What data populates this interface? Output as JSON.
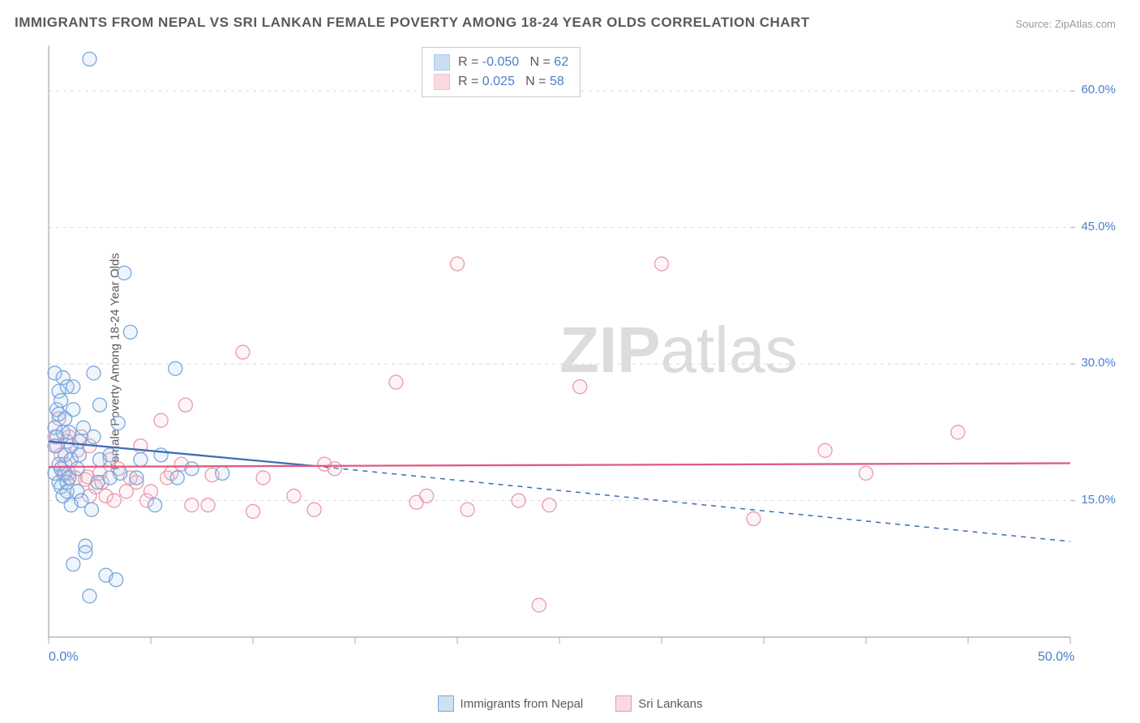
{
  "title": "IMMIGRANTS FROM NEPAL VS SRI LANKAN FEMALE POVERTY AMONG 18-24 YEAR OLDS CORRELATION CHART",
  "source": "Source: ZipAtlas.com",
  "ylabel": "Female Poverty Among 18-24 Year Olds",
  "watermark": {
    "zip": "ZIP",
    "atlas": "atlas"
  },
  "chart": {
    "type": "scatter",
    "background_color": "#ffffff",
    "grid_color": "#d9d9d9",
    "axis_color": "#a8a8a8",
    "tick_color": "#a8a8a8",
    "label_color": "#4a7ecb",
    "xlim": [
      0,
      50
    ],
    "ylim": [
      0,
      65
    ],
    "xticks_minor": [
      5,
      10,
      15,
      20,
      25,
      30,
      35,
      40,
      45
    ],
    "xticks_label": [
      {
        "v": 0,
        "t": "0.0%"
      },
      {
        "v": 50,
        "t": "50.0%"
      }
    ],
    "yticks": [
      {
        "v": 15,
        "t": "15.0%"
      },
      {
        "v": 30,
        "t": "30.0%"
      },
      {
        "v": 45,
        "t": "45.0%"
      },
      {
        "v": 60,
        "t": "60.0%"
      }
    ],
    "marker_radius": 8.5,
    "marker_stroke_width": 1.3,
    "marker_fill_opacity": 0.18,
    "series": [
      {
        "name": "Immigrants from Nepal",
        "color_stroke": "#7aa6dc",
        "color_fill": "#a9c8ec",
        "R": "-0.050",
        "N": "62",
        "trend": {
          "solid_from": [
            0,
            21.5
          ],
          "solid_to": [
            13,
            18.8
          ],
          "dash_to": [
            50,
            10.5
          ],
          "stroke": "#3d6db5",
          "width": 2.3
        },
        "points": [
          [
            0.3,
            21
          ],
          [
            0.3,
            18
          ],
          [
            0.3,
            23
          ],
          [
            0.3,
            29
          ],
          [
            0.4,
            25
          ],
          [
            0.4,
            22
          ],
          [
            0.5,
            27
          ],
          [
            0.5,
            19
          ],
          [
            0.5,
            17
          ],
          [
            0.5,
            24.5
          ],
          [
            0.6,
            18.5
          ],
          [
            0.6,
            16.5
          ],
          [
            0.6,
            26
          ],
          [
            0.7,
            28.5
          ],
          [
            0.7,
            22.5
          ],
          [
            0.7,
            15.5
          ],
          [
            0.8,
            20
          ],
          [
            0.8,
            24
          ],
          [
            0.8,
            18
          ],
          [
            0.9,
            17
          ],
          [
            0.9,
            16
          ],
          [
            0.9,
            27.5
          ],
          [
            1.0,
            17.5
          ],
          [
            1.0,
            22.5
          ],
          [
            1.1,
            14.5
          ],
          [
            1.1,
            19.5
          ],
          [
            1.1,
            21
          ],
          [
            1.2,
            8
          ],
          [
            1.2,
            25
          ],
          [
            1.2,
            27.5
          ],
          [
            1.4,
            18.5
          ],
          [
            1.4,
            16
          ],
          [
            1.5,
            21.5
          ],
          [
            1.5,
            20
          ],
          [
            1.6,
            15
          ],
          [
            1.7,
            23
          ],
          [
            1.8,
            10
          ],
          [
            1.8,
            9.3
          ],
          [
            2.0,
            63.5
          ],
          [
            2.0,
            4.5
          ],
          [
            2.1,
            14
          ],
          [
            2.2,
            29
          ],
          [
            2.2,
            22
          ],
          [
            2.4,
            17
          ],
          [
            2.5,
            25.5
          ],
          [
            2.5,
            19.5
          ],
          [
            2.8,
            6.8
          ],
          [
            3.0,
            20
          ],
          [
            3.0,
            17.5
          ],
          [
            3.3,
            6.3
          ],
          [
            3.4,
            23.5
          ],
          [
            3.5,
            18
          ],
          [
            3.7,
            40
          ],
          [
            4.0,
            33.5
          ],
          [
            4.3,
            17.5
          ],
          [
            4.5,
            19.5
          ],
          [
            5.2,
            14.5
          ],
          [
            5.5,
            20
          ],
          [
            6.2,
            29.5
          ],
          [
            6.3,
            17.5
          ],
          [
            7.0,
            18.5
          ],
          [
            8.5,
            18
          ]
        ]
      },
      {
        "name": "Sri Lankans",
        "color_stroke": "#e89aac",
        "color_fill": "#f4c0cc",
        "R": "0.025",
        "N": "58",
        "trend": {
          "solid_from": [
            0,
            18.7
          ],
          "solid_to": [
            50,
            19.1
          ],
          "stroke": "#e05a84",
          "width": 2.3
        },
        "points": [
          [
            0.3,
            22
          ],
          [
            0.4,
            21
          ],
          [
            0.5,
            24
          ],
          [
            0.6,
            20
          ],
          [
            0.7,
            18
          ],
          [
            0.8,
            19
          ],
          [
            0.9,
            21.5
          ],
          [
            1.0,
            18
          ],
          [
            1.0,
            22
          ],
          [
            1.3,
            17.5
          ],
          [
            1.4,
            20.5
          ],
          [
            1.6,
            22
          ],
          [
            1.8,
            17.3
          ],
          [
            1.9,
            17.6
          ],
          [
            2.0,
            21
          ],
          [
            2.0,
            15.5
          ],
          [
            2.3,
            16.5
          ],
          [
            2.5,
            18
          ],
          [
            2.6,
            17
          ],
          [
            2.8,
            15.5
          ],
          [
            3.0,
            19.5
          ],
          [
            3.2,
            15
          ],
          [
            3.4,
            18.5
          ],
          [
            3.8,
            16
          ],
          [
            4.0,
            17.5
          ],
          [
            4.3,
            17
          ],
          [
            4.5,
            21
          ],
          [
            4.8,
            15
          ],
          [
            5.0,
            16
          ],
          [
            5.5,
            23.8
          ],
          [
            5.8,
            17.5
          ],
          [
            6.0,
            18
          ],
          [
            6.5,
            19
          ],
          [
            6.7,
            25.5
          ],
          [
            7.0,
            14.5
          ],
          [
            7.8,
            14.5
          ],
          [
            8.0,
            17.8
          ],
          [
            9.5,
            31.3
          ],
          [
            10.0,
            13.8
          ],
          [
            10.5,
            17.5
          ],
          [
            12.0,
            15.5
          ],
          [
            13.0,
            14
          ],
          [
            13.5,
            19
          ],
          [
            14.0,
            18.5
          ],
          [
            17.0,
            28
          ],
          [
            18.0,
            14.8
          ],
          [
            18.5,
            15.5
          ],
          [
            20.0,
            41
          ],
          [
            20.5,
            14
          ],
          [
            23.0,
            15
          ],
          [
            24.0,
            3.5
          ],
          [
            24.5,
            14.5
          ],
          [
            26.0,
            27.5
          ],
          [
            30.0,
            41
          ],
          [
            34.5,
            13
          ],
          [
            38.0,
            20.5
          ],
          [
            40.0,
            18
          ],
          [
            44.5,
            22.5
          ]
        ]
      }
    ]
  },
  "bottom_legend": [
    {
      "label": "Immigrants from Nepal",
      "stroke": "#7aa6dc",
      "fill": "#cfe0f3"
    },
    {
      "label": "Sri Lankans",
      "stroke": "#e89aac",
      "fill": "#f8dbe2"
    }
  ]
}
